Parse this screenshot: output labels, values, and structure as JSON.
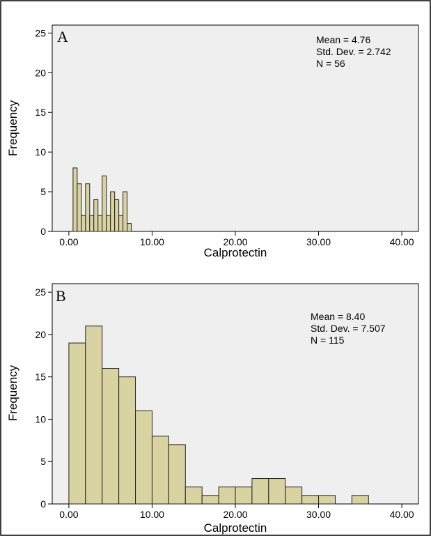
{
  "chart_data": [
    {
      "type": "bar",
      "panel_label": "A",
      "xlabel": "Calprotectin",
      "ylabel": "Frequency",
      "xlim": [
        -2,
        42
      ],
      "ylim": [
        0,
        26
      ],
      "x_ticks": [
        "0.00",
        "10.00",
        "20.00",
        "30.00",
        "40.00"
      ],
      "x_tick_values": [
        0,
        10,
        20,
        30,
        40
      ],
      "y_ticks": [
        "0",
        "5",
        "10",
        "15",
        "20",
        "25"
      ],
      "y_tick_values": [
        0,
        5,
        10,
        15,
        20,
        25
      ],
      "bin_width": 0.5,
      "bin_starts": [
        0.5,
        1.0,
        1.5,
        2.0,
        2.5,
        3.0,
        3.5,
        4.0,
        4.5,
        5.0,
        5.5,
        6.0,
        6.5,
        7.0,
        7.5,
        8.0,
        8.5,
        9.0,
        9.5
      ],
      "values": [
        8,
        6,
        2,
        6,
        2,
        4,
        2,
        7,
        2,
        5,
        4,
        2,
        5,
        1,
        0,
        0,
        0,
        0,
        0
      ],
      "stats": [
        "Mean = 4.76",
        "Std. Dev. = 2.742",
        "N = 56"
      ],
      "grid": false
    },
    {
      "type": "bar",
      "panel_label": "B",
      "xlabel": "Calprotectin",
      "ylabel": "Frequency",
      "xlim": [
        -2,
        42
      ],
      "ylim": [
        0,
        26
      ],
      "x_ticks": [
        "0.00",
        "10.00",
        "20.00",
        "30.00",
        "40.00"
      ],
      "x_tick_values": [
        0,
        10,
        20,
        30,
        40
      ],
      "y_ticks": [
        "0",
        "5",
        "10",
        "15",
        "20",
        "25"
      ],
      "y_tick_values": [
        0,
        5,
        10,
        15,
        20,
        25
      ],
      "bin_width": 2,
      "bin_starts": [
        0,
        2,
        4,
        6,
        8,
        10,
        12,
        14,
        16,
        18,
        20,
        22,
        24,
        26,
        28,
        30,
        32,
        34
      ],
      "values": [
        19,
        21,
        16,
        15,
        11,
        8,
        7,
        2,
        1,
        2,
        2,
        3,
        3,
        2,
        1,
        1,
        0,
        1
      ],
      "stats": [
        "Mean = 8.40",
        "Std. Dev. = 7.507",
        "N = 115"
      ],
      "grid": false
    }
  ]
}
